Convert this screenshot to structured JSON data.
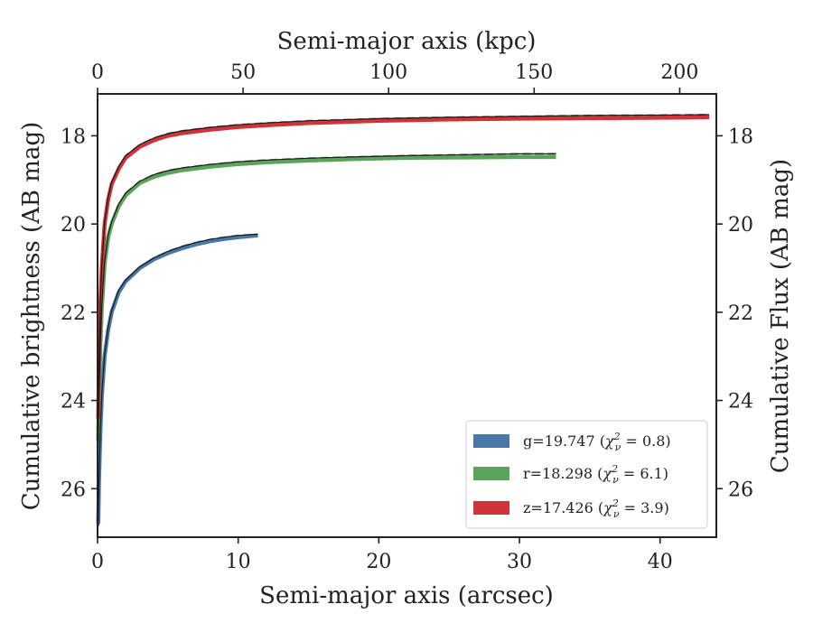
{
  "chart_data": {
    "type": "line",
    "xlabel": "Semi-major axis (arcsec)",
    "ylabel": "Cumulative brightness (AB mag)",
    "x2label": "Semi-major axis (kpc)",
    "y2label": "Cumulative Flux (AB mag)",
    "xlim": [
      0,
      44
    ],
    "ylim": [
      27.1,
      17.05
    ],
    "y_inverted": true,
    "x2lim": [
      0,
      212.6
    ],
    "xticks": [
      "0",
      "10",
      "20",
      "30",
      "40"
    ],
    "x2ticks": [
      "0",
      "50",
      "100",
      "150",
      "200"
    ],
    "yticks": [
      "18",
      "20",
      "22",
      "24",
      "26"
    ],
    "grid": false,
    "legend_position": "lower-right",
    "series": [
      {
        "name": "g=19.747",
        "chi2": "0.8",
        "color": "#4878a8",
        "x": [
          0.05,
          0.1,
          0.2,
          0.3,
          0.5,
          0.75,
          1.0,
          1.5,
          2.0,
          3.0,
          4.0,
          5.0,
          6.0,
          7.0,
          8.0,
          9.0,
          10.0,
          11.0,
          11.4
        ],
        "y": [
          26.8,
          25.8,
          24.7,
          23.9,
          23.0,
          22.4,
          22.0,
          21.55,
          21.3,
          21.0,
          20.8,
          20.66,
          20.55,
          20.46,
          20.39,
          20.34,
          20.3,
          20.27,
          20.26
        ]
      },
      {
        "name": "r=18.298",
        "chi2": "6.1",
        "color": "#5aa55a",
        "x": [
          0.05,
          0.1,
          0.2,
          0.3,
          0.5,
          0.75,
          1.0,
          1.5,
          2.0,
          3.0,
          4.0,
          5.0,
          6.0,
          8.0,
          10.0,
          12.0,
          15.0,
          18.0,
          22.0,
          26.0,
          30.0,
          32.6
        ],
        "y": [
          24.9,
          23.9,
          22.7,
          21.9,
          20.9,
          20.3,
          20.0,
          19.6,
          19.35,
          19.07,
          18.93,
          18.84,
          18.78,
          18.7,
          18.64,
          18.6,
          18.56,
          18.53,
          18.5,
          18.49,
          18.48,
          18.48
        ]
      },
      {
        "name": "z=17.426",
        "chi2": "3.9",
        "color": "#d03438",
        "x": [
          0.05,
          0.1,
          0.2,
          0.3,
          0.5,
          0.75,
          1.0,
          1.5,
          2.0,
          3.0,
          4.0,
          5.0,
          6.0,
          8.0,
          10.0,
          12.0,
          15.0,
          20.0,
          25.0,
          30.0,
          35.0,
          40.0,
          43.5
        ],
        "y": [
          24.4,
          23.2,
          21.8,
          21.0,
          20.0,
          19.45,
          19.1,
          18.75,
          18.5,
          18.25,
          18.1,
          18.0,
          17.94,
          17.86,
          17.8,
          17.76,
          17.71,
          17.66,
          17.63,
          17.61,
          17.6,
          17.59,
          17.58
        ]
      }
    ],
    "model_curves": [
      {
        "color": "#777777",
        "x": [
          0.05,
          0.1,
          0.2,
          0.3,
          0.5,
          0.75,
          1.0,
          1.5,
          2.0,
          3.0,
          4.0,
          5.0,
          6.0,
          7.0,
          8.0,
          9.0,
          10.0,
          11.0,
          11.4
        ],
        "y": [
          26.85,
          25.75,
          24.65,
          23.85,
          22.95,
          22.35,
          21.95,
          21.5,
          21.27,
          20.97,
          20.77,
          20.62,
          20.51,
          20.42,
          20.35,
          20.3,
          20.26,
          20.24,
          20.23
        ]
      },
      {
        "color": "#777777",
        "x": [
          0.05,
          0.1,
          0.2,
          0.3,
          0.5,
          0.75,
          1.0,
          1.5,
          2.0,
          3.0,
          4.0,
          5.0,
          6.0,
          8.0,
          10.0,
          12.0,
          15.0,
          18.0,
          22.0,
          26.0,
          30.0,
          32.6
        ],
        "y": [
          24.95,
          23.85,
          22.65,
          21.85,
          20.85,
          20.25,
          19.95,
          19.55,
          19.3,
          19.03,
          18.88,
          18.79,
          18.73,
          18.65,
          18.59,
          18.55,
          18.51,
          18.48,
          18.45,
          18.43,
          18.41,
          18.41
        ]
      },
      {
        "color": "#777777",
        "x": [
          0.05,
          0.1,
          0.2,
          0.3,
          0.5,
          0.75,
          1.0,
          1.5,
          2.0,
          3.0,
          4.0,
          5.0,
          6.0,
          8.0,
          10.0,
          12.0,
          15.0,
          20.0,
          25.0,
          30.0,
          35.0,
          40.0,
          43.5
        ],
        "y": [
          24.45,
          23.15,
          21.75,
          20.95,
          19.95,
          19.4,
          19.05,
          18.7,
          18.45,
          18.2,
          18.05,
          17.95,
          17.89,
          17.81,
          17.75,
          17.71,
          17.66,
          17.61,
          17.58,
          17.56,
          17.54,
          17.53,
          17.52
        ]
      }
    ]
  }
}
